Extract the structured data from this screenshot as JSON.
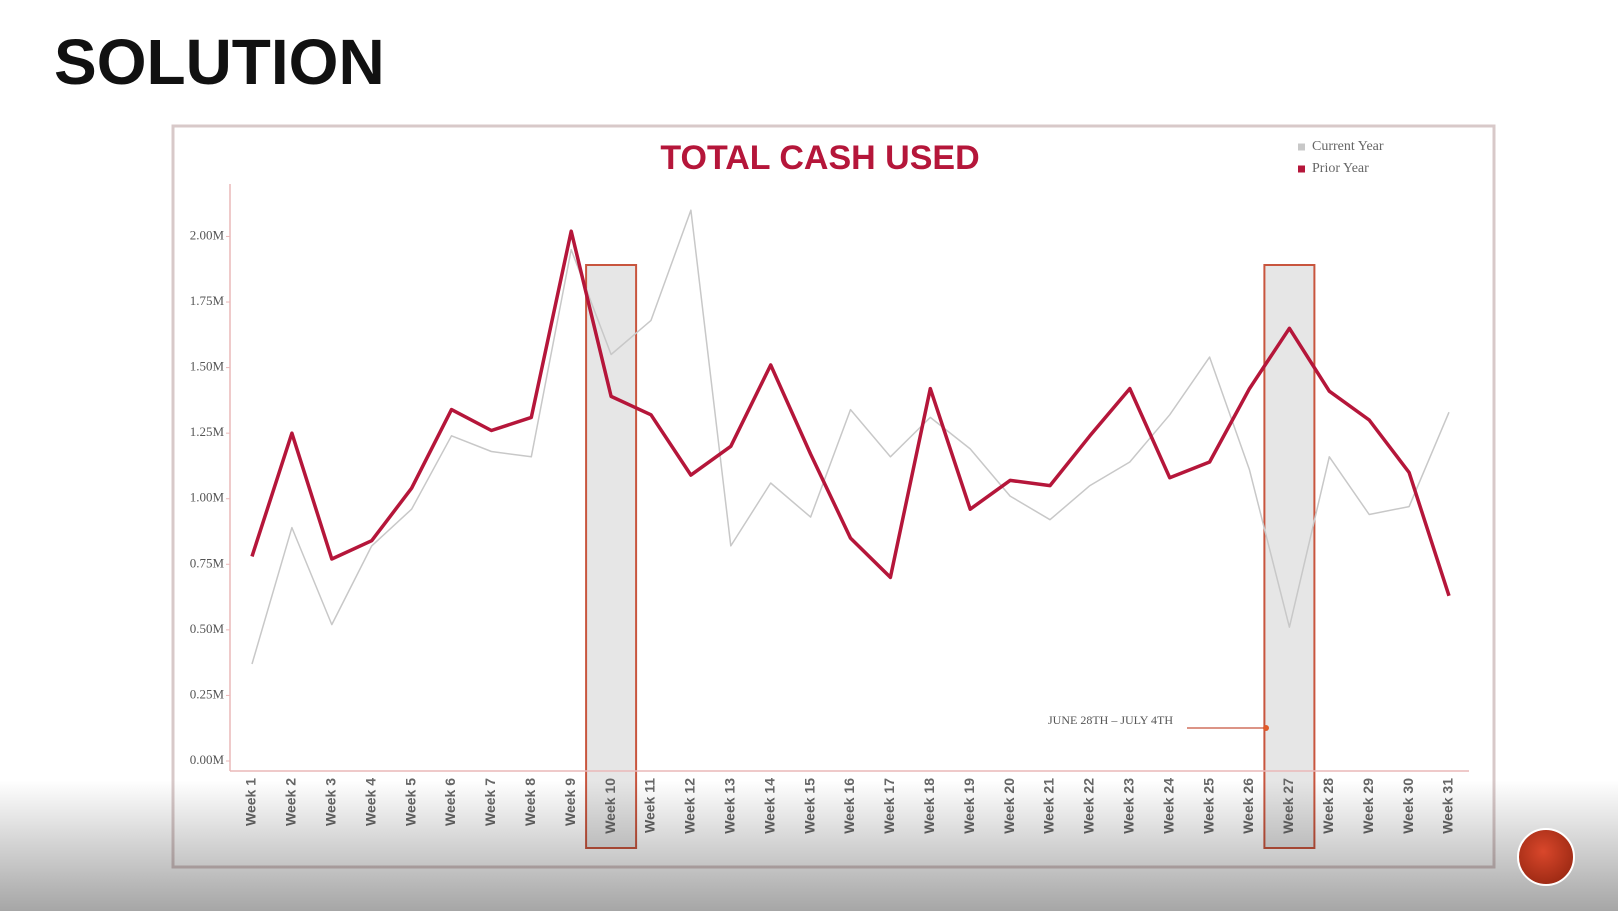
{
  "slide": {
    "title": "SOLUTION"
  },
  "chart_data": {
    "type": "line",
    "title": "TOTAL CASH USED",
    "categories": [
      "Week 1",
      "Week 2",
      "Week 3",
      "Week 4",
      "Week 5",
      "Week 6",
      "Week 7",
      "Week 8",
      "Week 9",
      "Week 10",
      "Week 11",
      "Week 12",
      "Week 13",
      "Week 14",
      "Week 15",
      "Week 16",
      "Week 17",
      "Week 18",
      "Week 19",
      "Week 20",
      "Week 21",
      "Week 22",
      "Week 23",
      "Week 24",
      "Week 25",
      "Week 26",
      "Week 27",
      "Week 28",
      "Week 29",
      "Week 30",
      "Week 31"
    ],
    "series": [
      {
        "name": "Current Year",
        "color": "#c8c8c8",
        "width": 1.5,
        "values": [
          0.37,
          0.89,
          0.52,
          0.82,
          0.96,
          1.24,
          1.18,
          1.16,
          1.95,
          1.55,
          1.68,
          2.1,
          0.82,
          1.06,
          0.93,
          1.34,
          1.16,
          1.31,
          1.19,
          1.01,
          0.92,
          1.05,
          1.14,
          1.32,
          1.54,
          1.11,
          0.51,
          1.16,
          0.94,
          0.97,
          1.33
        ]
      },
      {
        "name": "Prior Year",
        "color": "#b5163a",
        "width": 3.5,
        "values": [
          0.78,
          1.25,
          0.77,
          0.84,
          1.04,
          1.34,
          1.26,
          1.31,
          2.02,
          1.39,
          1.32,
          1.09,
          1.2,
          1.51,
          1.17,
          0.85,
          0.7,
          1.42,
          0.96,
          1.07,
          1.05,
          1.24,
          1.42,
          1.08,
          1.14,
          1.42,
          1.65,
          1.41,
          1.3,
          1.1,
          0.63
        ]
      }
    ],
    "ylim": [
      0,
      2.2
    ],
    "yticks": [
      {
        "value": 0,
        "label": "0.00M"
      },
      {
        "value": 0.25,
        "label": "0.25M"
      },
      {
        "value": 0.5,
        "label": "0.50M"
      },
      {
        "value": 0.75,
        "label": "0.75M"
      },
      {
        "value": 1,
        "label": "1.00M"
      },
      {
        "value": 1.25,
        "label": "1.25M"
      },
      {
        "value": 1.5,
        "label": "1.50M"
      },
      {
        "value": 1.75,
        "label": "1.75M"
      },
      {
        "value": 2,
        "label": "2.00M"
      }
    ],
    "grid": false,
    "legend": "top-right",
    "highlight_indices": [
      9,
      26
    ],
    "annotation": "JUNE 28TH – JULY 4TH"
  }
}
